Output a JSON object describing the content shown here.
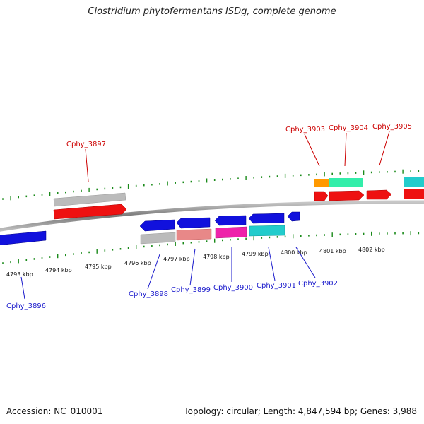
{
  "title": "Clostridium phytofermentans ISDg, complete genome",
  "footer": {
    "accession": "Accession: NC_010001",
    "topology": "Topology: circular; Length: 4,847,594 bp; Genes: 3,988"
  },
  "colors": {
    "forward_gene": "#ee1111",
    "reverse_gene": "#1111dd",
    "backbone": "#888888",
    "tick": "#1a8a1a",
    "label_forward": "#cc0000",
    "label_reverse": "#1a1acc",
    "grey_feature": "#bbbbbb",
    "salmon_feature": "#e88888",
    "magenta_feature": "#ee22aa",
    "cyan_feature": "#22cccc",
    "orange_feature": "#ff9900",
    "mint_feature": "#33eeaa"
  },
  "scale_labels": [
    "4793 kbp",
    "4794 kbp",
    "4795 kbp",
    "4796 kbp",
    "4797 kbp",
    "4798 kbp",
    "4799 kbp",
    "4800 kbp",
    "4801 kbp",
    "4802 kbp"
  ],
  "genes_top": [
    "Cphy_3897",
    "Cphy_3903",
    "Cphy_3904",
    "Cphy_3905"
  ],
  "genes_bottom": [
    "Cphy_3896",
    "Cphy_3898",
    "Cphy_3899",
    "Cphy_3900",
    "Cphy_3901",
    "Cphy_3902"
  ]
}
